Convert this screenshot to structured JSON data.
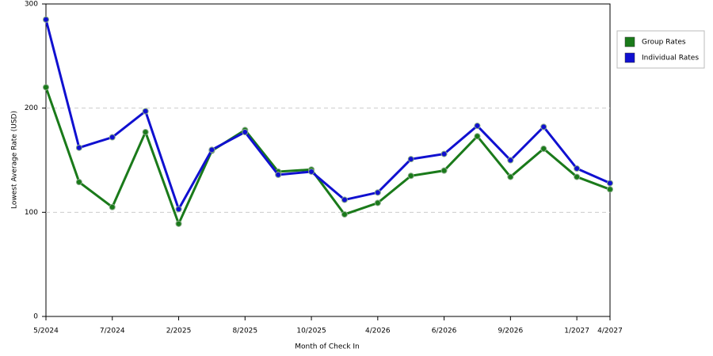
{
  "chart_data": {
    "type": "line",
    "x_label": "Month of Check In",
    "y_label": "Lowest Average Rate (USD)",
    "categories": [
      "5/2024",
      null,
      "7/2024",
      null,
      "2/2025",
      null,
      "8/2025",
      null,
      "10/2025",
      null,
      "4/2026",
      null,
      "6/2026",
      null,
      "9/2026",
      null,
      "1/2027",
      "4/2027"
    ],
    "series": [
      {
        "name": "Group Rates",
        "color": "#1a7a1a",
        "values": [
          220,
          129,
          105,
          177,
          89,
          159,
          179,
          139,
          141,
          98,
          109,
          135,
          140,
          173,
          134,
          161,
          134,
          122
        ]
      },
      {
        "name": "Individual Rates",
        "color": "#1010d0",
        "values": [
          285,
          162,
          172,
          197,
          103,
          160,
          177,
          136,
          139,
          112,
          119,
          151,
          156,
          183,
          150,
          182,
          142,
          128
        ]
      }
    ],
    "ylim": [
      0,
      300
    ],
    "yticks": [
      0,
      100,
      200,
      300
    ],
    "grid": true,
    "legend": "top-right"
  }
}
